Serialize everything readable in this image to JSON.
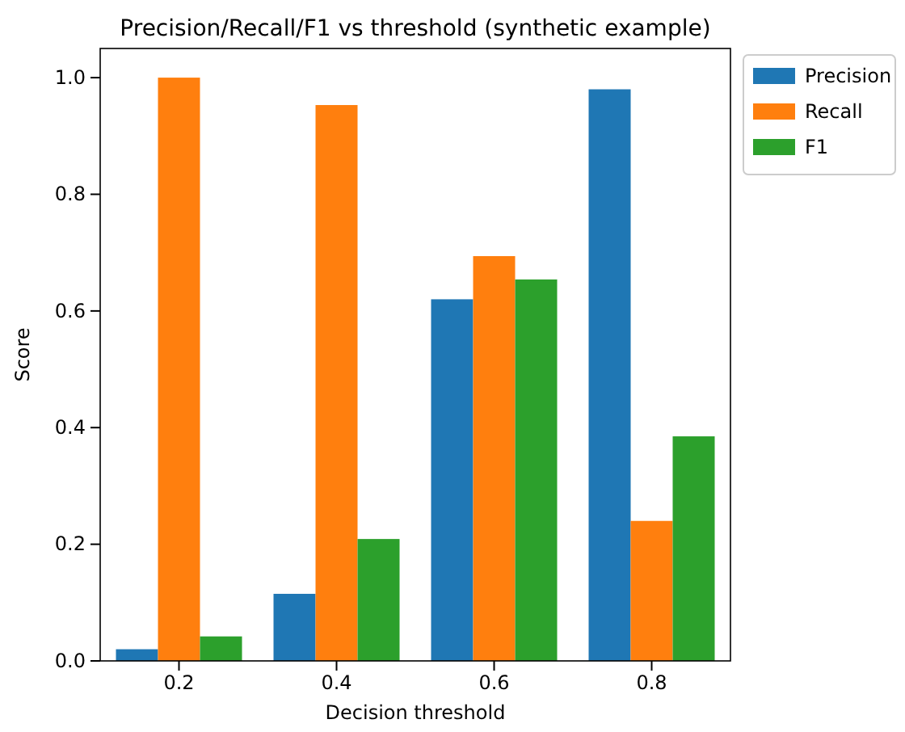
{
  "chart_data": {
    "type": "bar",
    "title": "Precision/Recall/F1 vs threshold (synthetic example)",
    "xlabel": "Decision threshold",
    "ylabel": "Score",
    "categories": [
      "0.2",
      "0.4",
      "0.6",
      "0.8"
    ],
    "series": [
      {
        "name": "Precision",
        "color": "#1f77b4",
        "values": [
          0.02,
          0.115,
          0.62,
          0.98
        ]
      },
      {
        "name": "Recall",
        "color": "#ff7f0e",
        "values": [
          1.0,
          0.953,
          0.694,
          0.24
        ]
      },
      {
        "name": "F1",
        "color": "#2ca02c",
        "values": [
          0.042,
          0.209,
          0.654,
          0.385
        ]
      }
    ],
    "ylim": [
      0,
      1.05
    ],
    "yticks": [
      {
        "value": 0,
        "label": "0.0"
      },
      {
        "value": 0.2,
        "label": "0.2"
      },
      {
        "value": 0.4,
        "label": "0.4"
      },
      {
        "value": 0.6,
        "label": "0.6"
      },
      {
        "value": 0.8,
        "label": "0.8"
      },
      {
        "value": 1,
        "label": "1.0"
      }
    ],
    "grid": false,
    "legend": "top right"
  }
}
